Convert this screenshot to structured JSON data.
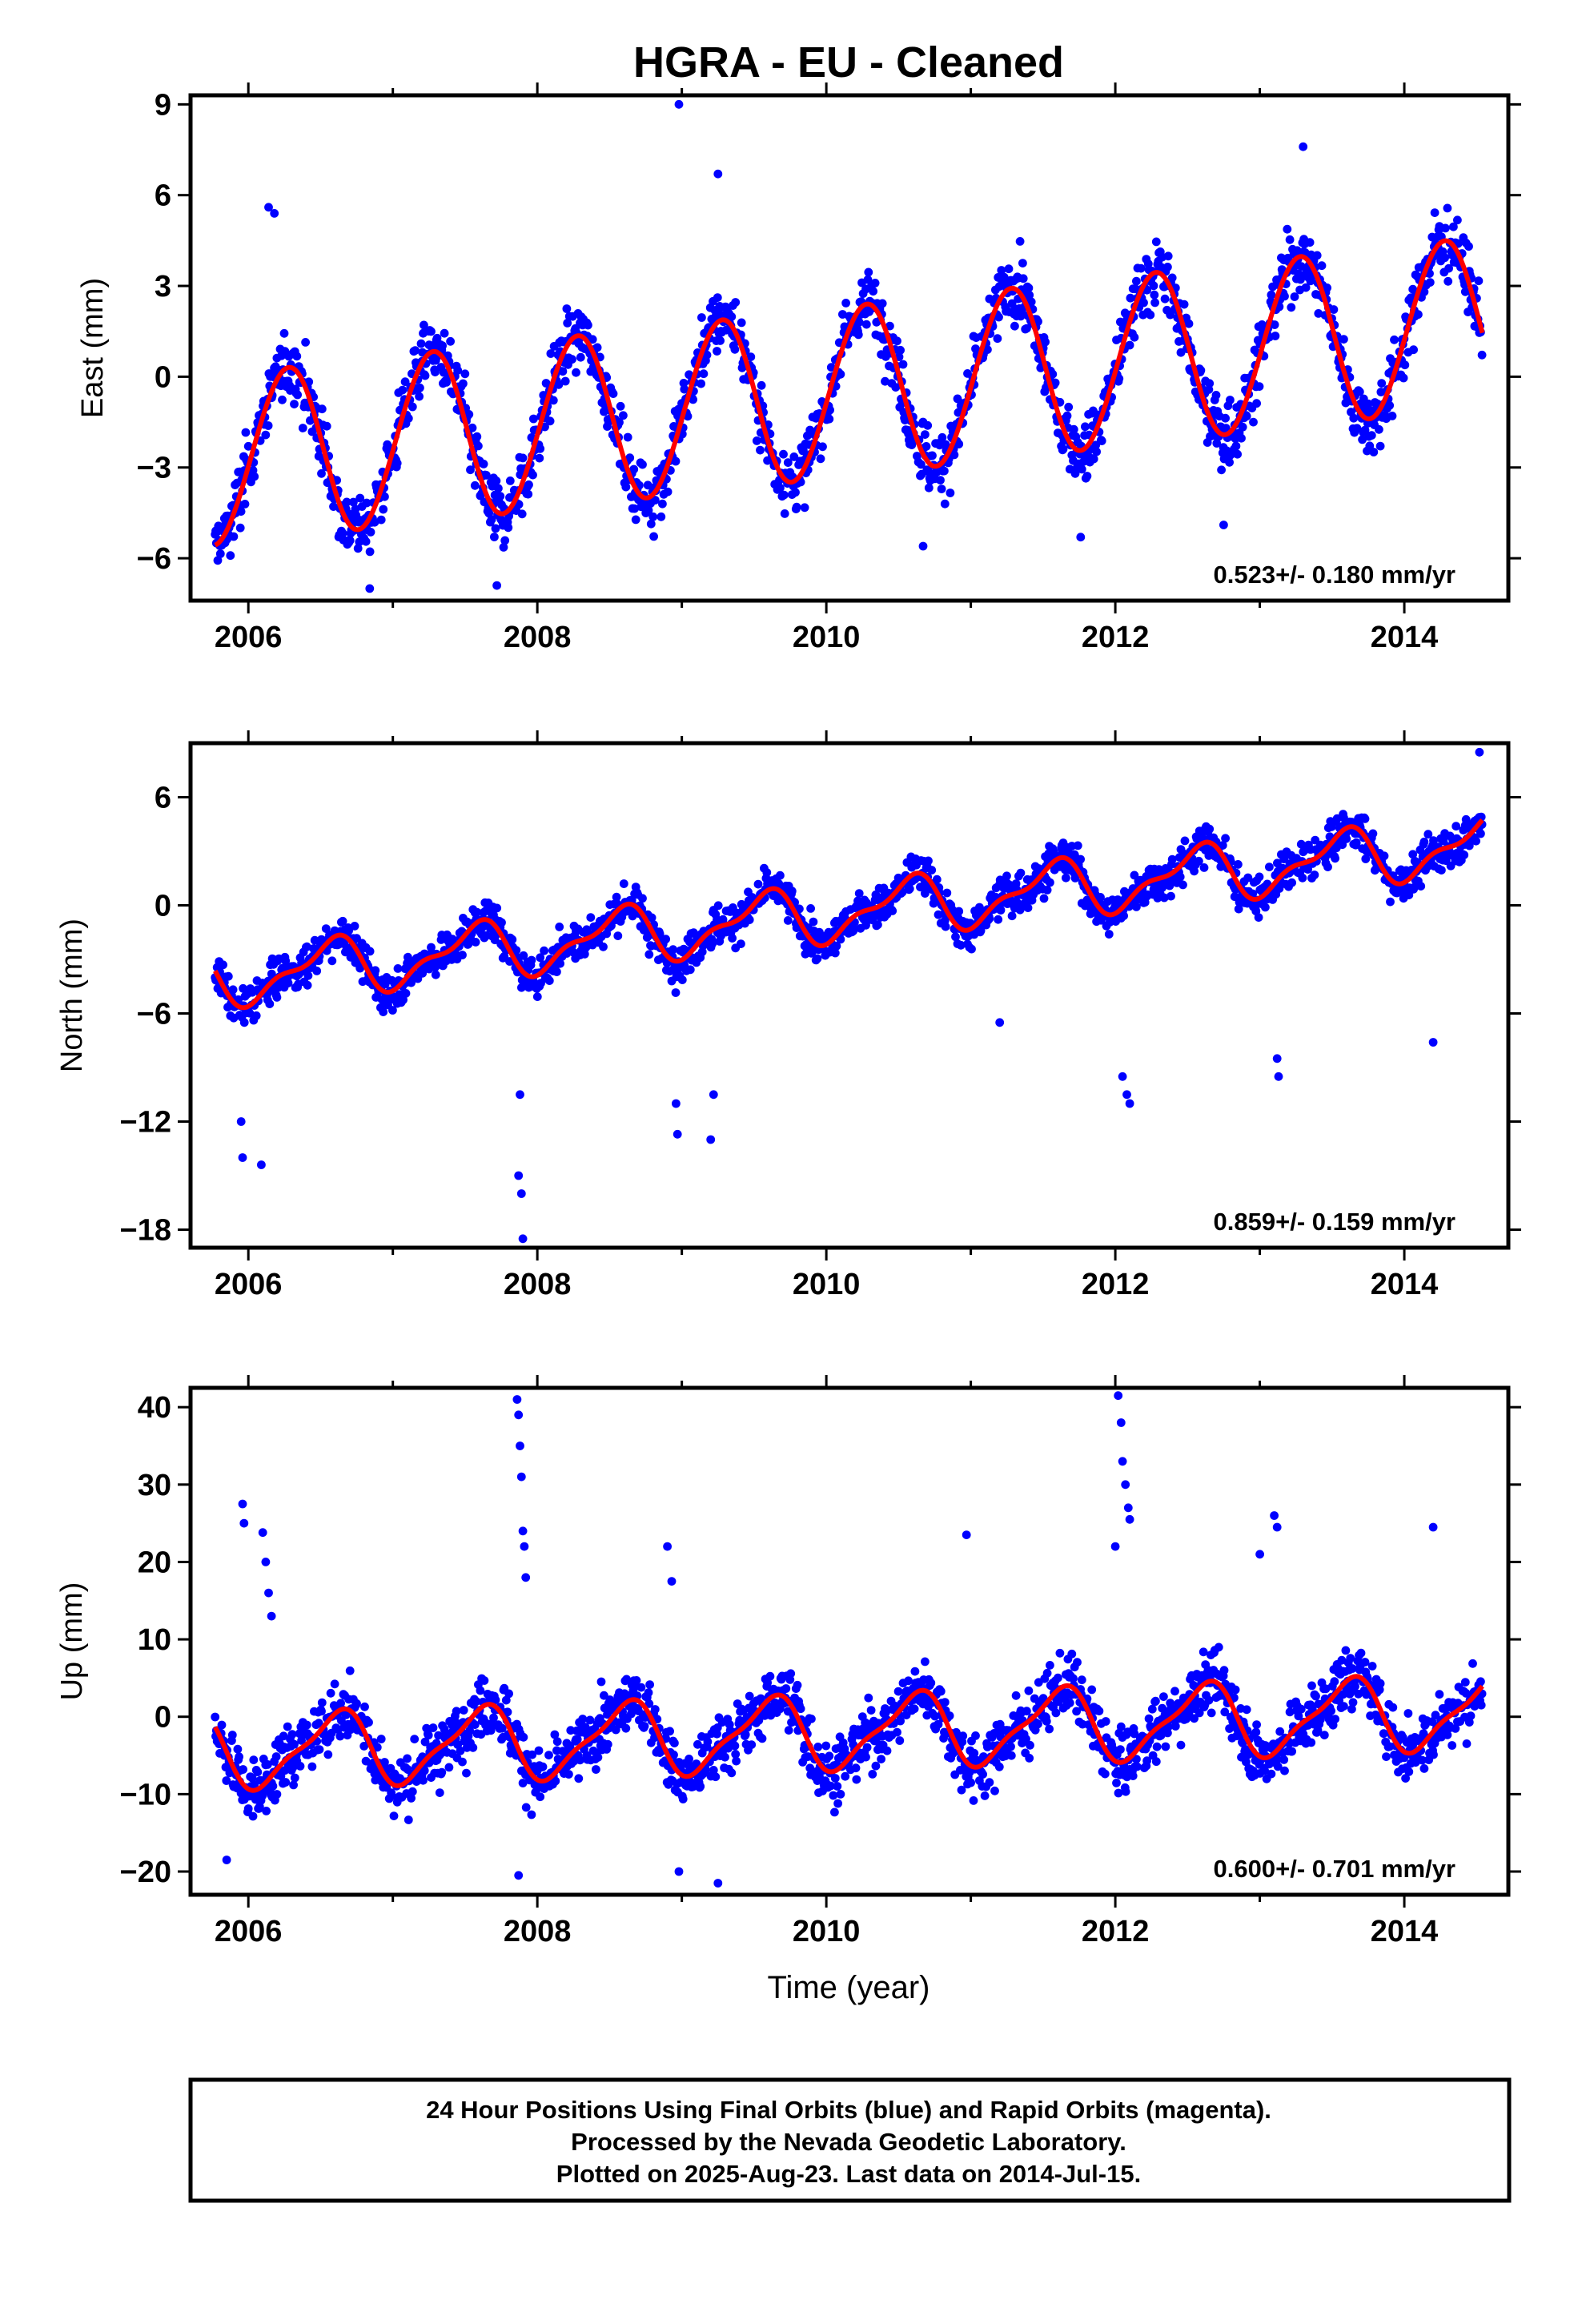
{
  "title": "HGRA  - EU - Cleaned",
  "x_axis_label": "Time (year)",
  "footer": {
    "line1": "24 Hour Positions Using Final Orbits (blue) and Rapid Orbits (magenta).",
    "line2": "Processed by the Nevada Geodetic Laboratory.",
    "line3": "Plotted on 2025-Aug-23. Last data on 2014-Jul-15."
  },
  "colors": {
    "data": "#0000ff",
    "model": "#ff0000",
    "frame": "#000000"
  },
  "chart_data": [
    {
      "type": "scatter",
      "component": "east",
      "ylabel": "East (mm)",
      "rate_text": "0.523+/- 0.180 mm/yr",
      "xlim": [
        2005.6,
        2014.72
      ],
      "ylim": [
        -7.4,
        9.3
      ],
      "xticks": [
        2006,
        2008,
        2010,
        2012,
        2014
      ],
      "yticks": [
        9,
        6,
        3,
        0,
        -3,
        -6
      ],
      "ytick_labels": [
        "9",
        "6",
        "3",
        "0",
        "−3",
        "−6"
      ],
      "x_range": [
        2005.77,
        2014.54
      ],
      "trend": {
        "mean": -0.5,
        "rate": 0.523,
        "annual_amp": 2.8,
        "annual_phase_year": 0.27,
        "semiannual_amp": 0.1,
        "noise": 1.1
      },
      "outliers": [
        [
          2006.14,
          5.6
        ],
        [
          2006.18,
          5.4
        ],
        [
          2008.98,
          9.0
        ],
        [
          2009.25,
          6.7
        ],
        [
          2013.3,
          7.6
        ],
        [
          2006.84,
          -7.0
        ],
        [
          2007.72,
          -6.9
        ],
        [
          2012.75,
          -4.9
        ],
        [
          2011.76,
          -5.3
        ],
        [
          2010.67,
          -5.6
        ]
      ]
    },
    {
      "type": "scatter",
      "component": "north",
      "ylabel": "North (mm)",
      "rate_text": "0.859+/- 0.159 mm/yr",
      "xlim": [
        2005.6,
        2014.72
      ],
      "ylim": [
        -19.0,
        9.0
      ],
      "xticks": [
        2006,
        2008,
        2010,
        2012,
        2014
      ],
      "yticks": [
        6,
        0,
        -6,
        -12,
        -18
      ],
      "ytick_labels": [
        "6",
        "0",
        "−6",
        "−12",
        "−18"
      ],
      "x_range": [
        2005.77,
        2014.54
      ],
      "trend": {
        "mean": -0.4,
        "rate": 0.859,
        "annual_amp": 1.4,
        "annual_phase_year": 0.55,
        "semiannual_amp": 0.6,
        "noise": 1.1
      },
      "outliers": [
        [
          2005.95,
          -12.0
        ],
        [
          2005.96,
          -14.0
        ],
        [
          2006.09,
          -14.4
        ],
        [
          2007.88,
          -10.5
        ],
        [
          2007.87,
          -15.0
        ],
        [
          2007.89,
          -16.0
        ],
        [
          2007.9,
          -18.5
        ],
        [
          2008.97,
          -12.7
        ],
        [
          2008.96,
          -11.0
        ],
        [
          2009.2,
          -13.0
        ],
        [
          2009.22,
          -10.5
        ],
        [
          2011.2,
          -6.5
        ],
        [
          2012.05,
          -9.5
        ],
        [
          2012.08,
          -10.5
        ],
        [
          2012.1,
          -11.0
        ],
        [
          2013.12,
          -8.5
        ],
        [
          2013.13,
          -9.5
        ],
        [
          2014.2,
          -7.6
        ],
        [
          2014.52,
          8.5
        ]
      ]
    },
    {
      "type": "scatter",
      "component": "up",
      "ylabel": "Up (mm)",
      "rate_text": "0.600+/- 0.701 mm/yr",
      "xlim": [
        2005.6,
        2014.72
      ],
      "ylim": [
        -23.0,
        42.5
      ],
      "xticks": [
        2006,
        2008,
        2010,
        2012,
        2014
      ],
      "yticks": [
        40,
        30,
        20,
        10,
        0,
        -10,
        -20
      ],
      "ytick_labels": [
        "40",
        "30",
        "20",
        "10",
        "0",
        "−10",
        "−20"
      ],
      "x_range": [
        2005.77,
        2014.54
      ],
      "trend": {
        "mean": -2.0,
        "rate": 0.6,
        "annual_amp": 4.5,
        "annual_phase_year": 0.6,
        "semiannual_amp": 1.3,
        "noise": 4.0
      },
      "outliers": [
        [
          2005.96,
          27.5
        ],
        [
          2005.97,
          25.0
        ],
        [
          2006.1,
          23.8
        ],
        [
          2006.12,
          20.0
        ],
        [
          2006.14,
          16.0
        ],
        [
          2006.16,
          13.0
        ],
        [
          2007.86,
          41.0
        ],
        [
          2007.87,
          39.0
        ],
        [
          2007.88,
          35.0
        ],
        [
          2007.89,
          31.0
        ],
        [
          2007.9,
          24.0
        ],
        [
          2007.91,
          22.0
        ],
        [
          2007.92,
          18.0
        ],
        [
          2008.9,
          22.0
        ],
        [
          2008.93,
          17.5
        ],
        [
          2010.97,
          23.5
        ],
        [
          2012.02,
          41.5
        ],
        [
          2012.04,
          38.0
        ],
        [
          2012.05,
          33.0
        ],
        [
          2012.07,
          30.0
        ],
        [
          2012.09,
          27.0
        ],
        [
          2012.1,
          25.5
        ],
        [
          2012.0,
          22.0
        ],
        [
          2013.1,
          26.0
        ],
        [
          2013.12,
          24.5
        ],
        [
          2013.0,
          21.0
        ],
        [
          2014.2,
          24.5
        ],
        [
          2007.87,
          -20.5
        ],
        [
          2009.25,
          -21.5
        ],
        [
          2008.98,
          -20.0
        ],
        [
          2005.85,
          -18.5
        ]
      ]
    }
  ]
}
